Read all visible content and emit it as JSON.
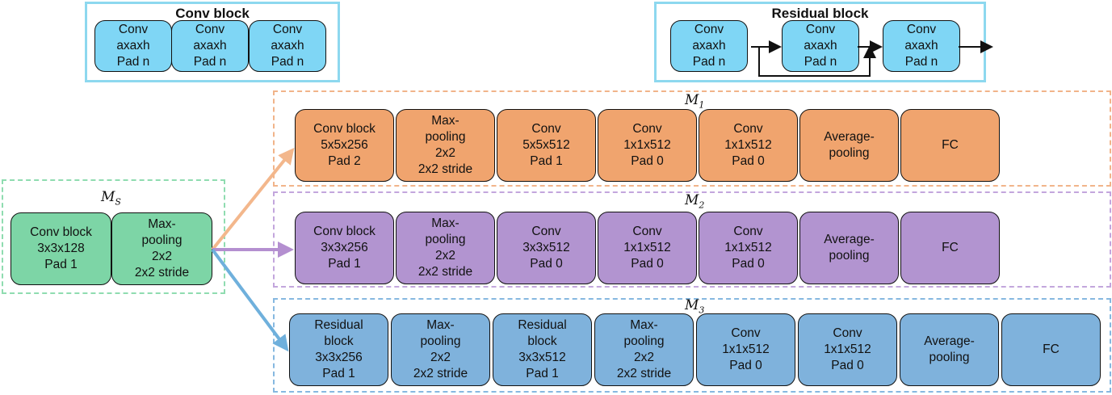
{
  "colors": {
    "conv_block": "#7fd6f5",
    "m1": "#f0a46e",
    "m2": "#b294d0",
    "m3": "#7fb2dc",
    "ms": "#7dd5a6",
    "m1_frame": "#f1b48a",
    "m2_frame": "#c3a6dd",
    "m3_frame": "#86b8e0",
    "ms_frame": "#8fdcb0"
  },
  "conv_block": {
    "title": "Conv block",
    "blocks": [
      [
        "Conv",
        "axaxh",
        "Pad n"
      ],
      [
        "Conv",
        "axaxh",
        "Pad n"
      ],
      [
        "Conv",
        "axaxh",
        "Pad n"
      ]
    ]
  },
  "residual_block": {
    "title": "Residual block",
    "blocks": [
      [
        "Conv",
        "axaxh",
        "Pad n"
      ],
      [
        "Conv",
        "axaxh",
        "Pad n"
      ],
      [
        "Conv",
        "axaxh",
        "Pad n"
      ]
    ]
  },
  "ms": {
    "label": "M",
    "sub": "S",
    "blocks": [
      [
        "Conv block",
        "3x3x128",
        "Pad 1"
      ],
      [
        "Max-",
        "pooling",
        "2x2",
        "2x2 stride"
      ]
    ]
  },
  "m1": {
    "label": "M",
    "sub": "1",
    "blocks": [
      [
        "Conv block",
        "5x5x256",
        "Pad 2"
      ],
      [
        "Max-",
        "pooling",
        "2x2",
        "2x2 stride"
      ],
      [
        "Conv",
        "5x5x512",
        "Pad 1"
      ],
      [
        "Conv",
        "1x1x512",
        "Pad 0"
      ],
      [
        "Conv",
        "1x1x512",
        "Pad 0"
      ],
      [
        "Average-",
        "pooling"
      ],
      [
        "FC"
      ]
    ]
  },
  "m2": {
    "label": "M",
    "sub": "2",
    "blocks": [
      [
        "Conv block",
        "3x3x256",
        "Pad 1"
      ],
      [
        "Max-",
        "pooling",
        "2x2",
        "2x2 stride"
      ],
      [
        "Conv",
        "3x3x512",
        "Pad 0"
      ],
      [
        "Conv",
        "1x1x512",
        "Pad 0"
      ],
      [
        "Conv",
        "1x1x512",
        "Pad 0"
      ],
      [
        "Average-",
        "pooling"
      ],
      [
        "FC"
      ]
    ]
  },
  "m3": {
    "label": "M",
    "sub": "3",
    "blocks": [
      [
        "Residual",
        "block",
        "3x3x256",
        "Pad 1"
      ],
      [
        "Max-",
        "pooling",
        "2x2",
        "2x2 stride"
      ],
      [
        "Residual",
        "block",
        "3x3x512",
        "Pad 1"
      ],
      [
        "Max-",
        "pooling",
        "2x2",
        "2x2 stride"
      ],
      [
        "Conv",
        "1x1x512",
        "Pad 0"
      ],
      [
        "Conv",
        "1x1x512",
        "Pad 0"
      ],
      [
        "Average-",
        "pooling"
      ],
      [
        "FC"
      ]
    ]
  }
}
